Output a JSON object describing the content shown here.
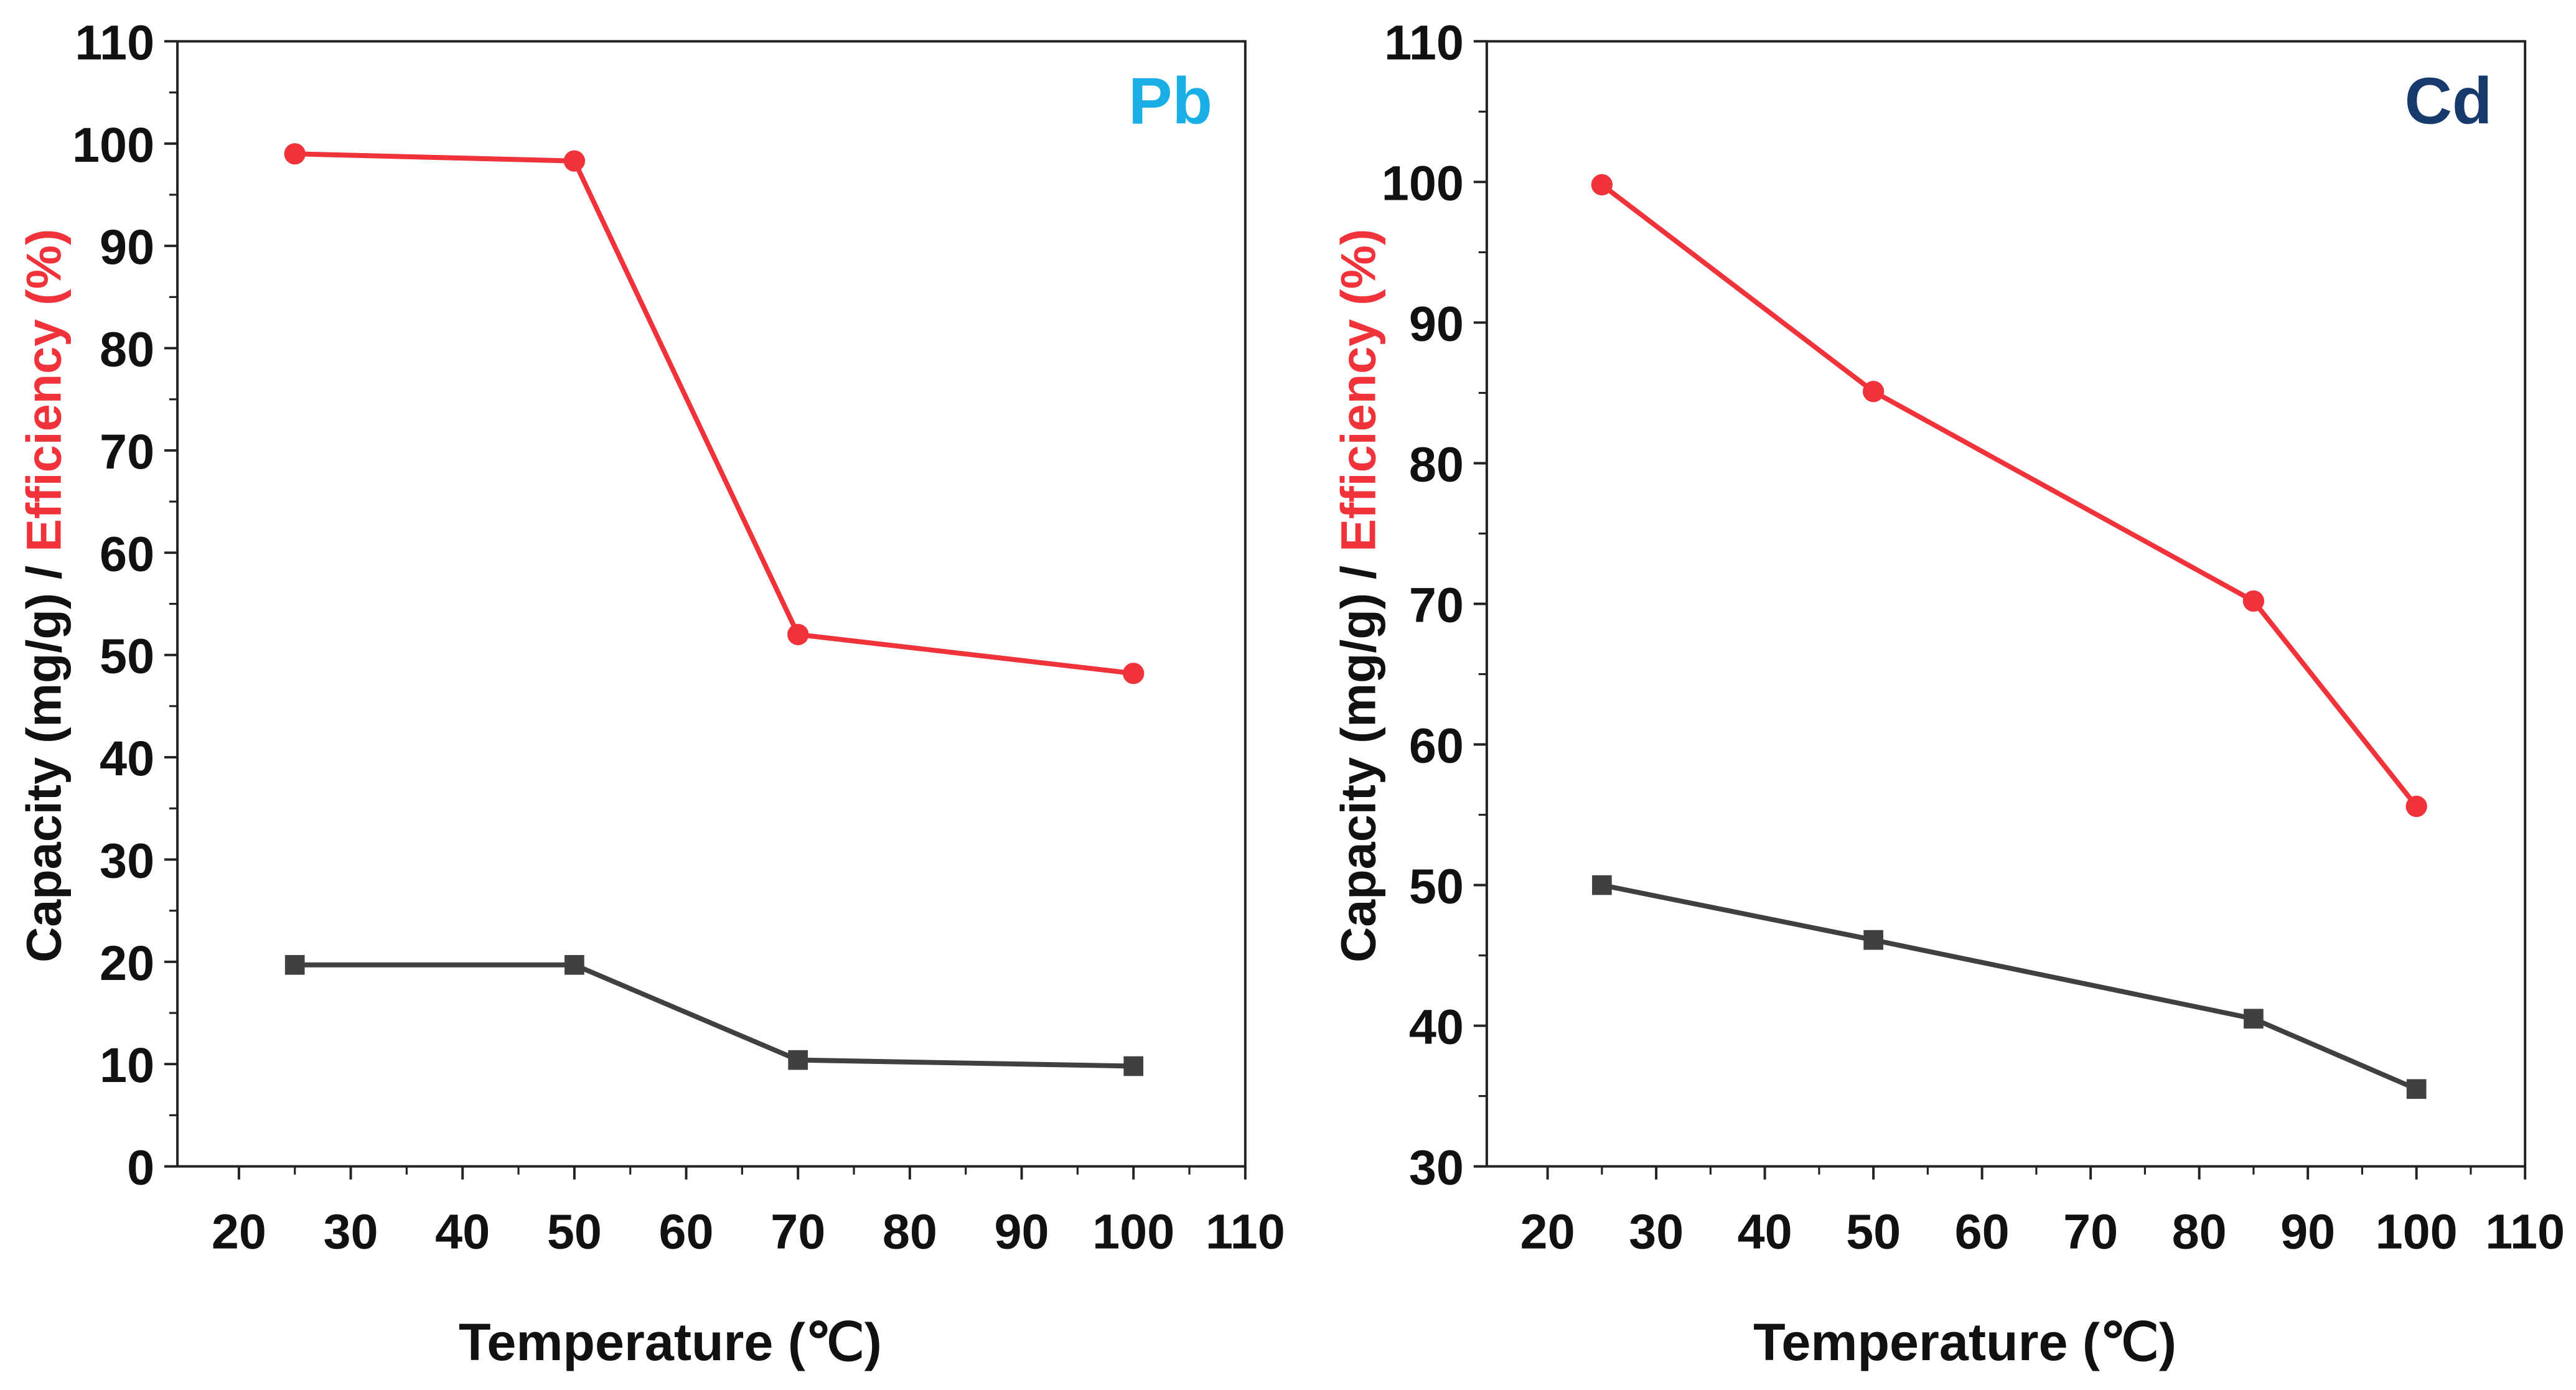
{
  "chart_data": [
    {
      "type": "line",
      "title": "Pb",
      "title_color": "#1aaee6",
      "xlabel": "Temperature (℃)",
      "ylabel_parts": [
        "Capacity (mg/g) / ",
        "Efficiency (%)"
      ],
      "xlim": [
        14.5,
        110
      ],
      "ylim": [
        0,
        110
      ],
      "xticks": [
        20,
        30,
        40,
        50,
        60,
        70,
        80,
        90,
        100,
        110
      ],
      "yticks": [
        0,
        10,
        20,
        30,
        40,
        50,
        60,
        70,
        80,
        90,
        100,
        110
      ],
      "series": [
        {
          "name": "Efficiency",
          "color": "#f0323a",
          "marker": "circle",
          "x": [
            25,
            50,
            70,
            100
          ],
          "y": [
            99,
            98.3,
            52,
            48.2
          ]
        },
        {
          "name": "Capacity",
          "color": "#404040",
          "marker": "square",
          "x": [
            25,
            50,
            70,
            100
          ],
          "y": [
            19.7,
            19.7,
            10.4,
            9.8
          ]
        }
      ]
    },
    {
      "type": "line",
      "title": "Cd",
      "title_color": "#163a6b",
      "xlabel": "Temperature (℃)",
      "ylabel_parts": [
        "Capacity (mg/g) / ",
        "Efficiency (%)"
      ],
      "xlim": [
        14.4,
        110
      ],
      "ylim": [
        30,
        110
      ],
      "xticks": [
        20,
        30,
        40,
        50,
        60,
        70,
        80,
        90,
        100,
        110
      ],
      "yticks": [
        30,
        40,
        50,
        60,
        70,
        80,
        90,
        100,
        110
      ],
      "series": [
        {
          "name": "Efficiency",
          "color": "#f0323a",
          "marker": "circle",
          "x": [
            25,
            50,
            85,
            100
          ],
          "y": [
            99.8,
            85.1,
            70.2,
            55.6
          ]
        },
        {
          "name": "Capacity",
          "color": "#404040",
          "marker": "square",
          "x": [
            25,
            50,
            85,
            100
          ],
          "y": [
            50,
            46.1,
            40.5,
            35.5
          ]
        }
      ]
    }
  ]
}
